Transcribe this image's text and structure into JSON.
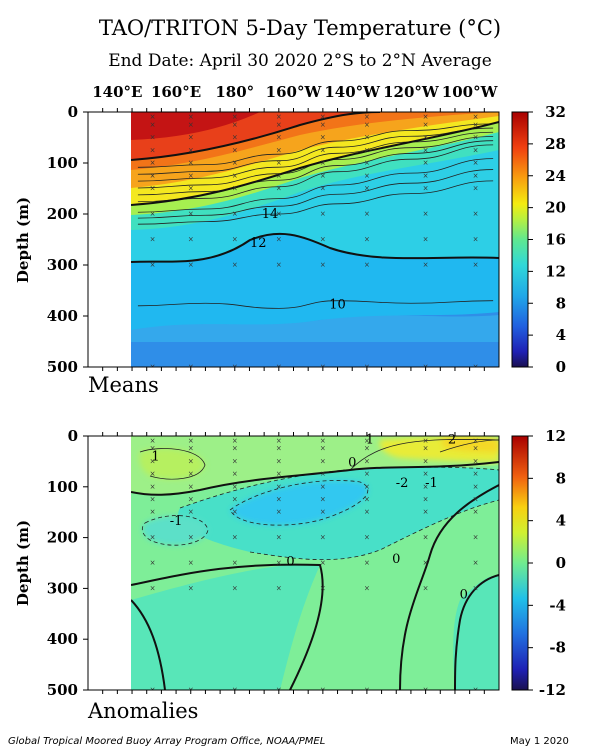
{
  "title": "TAO/TRITON 5-Day Temperature (°C)",
  "subtitle": "End Date: April 30 2020   2°S to 2°N Average",
  "footer_left": "Global Tropical Moored Buoy Array Program Office, NOAA/PMEL",
  "footer_right": "May  1 2020",
  "chart_data": [
    {
      "type": "heatmap",
      "panel_label": "Means",
      "ylabel": "Depth (m)",
      "x_tick_labels": [
        "140°E",
        "160°E",
        "180°",
        "160°W",
        "140°W",
        "120°W",
        "100°W"
      ],
      "x_ticks_lon": [
        140,
        160,
        180,
        200,
        220,
        240,
        260
      ],
      "xlim": [
        130,
        270
      ],
      "data_start_lon": 147,
      "y_ticks": [
        0,
        100,
        200,
        300,
        400,
        500
      ],
      "ylim": [
        500,
        0
      ],
      "colorbar": {
        "min": 0,
        "max": 32,
        "ticks": [
          0,
          4,
          8,
          12,
          16,
          20,
          24,
          28,
          32
        ]
      },
      "contour_labels": [
        {
          "text": "14",
          "lon": 192,
          "depth": 208
        },
        {
          "text": "12",
          "lon": 188,
          "depth": 265
        },
        {
          "text": "10",
          "lon": 215,
          "depth": 385
        }
      ],
      "isotherm_depths": {
        "lon": [
          147,
          170,
          195,
          215,
          240,
          268
        ],
        "t28": [
          95,
          90,
          70,
          45,
          25,
          15
        ],
        "t20": [
          185,
          178,
          155,
          125,
          100,
          70
        ],
        "t14": [
          220,
          215,
          200,
          180,
          160,
          135
        ],
        "t12": [
          295,
          300,
          270,
          240,
          280,
          285
        ],
        "t10": [
          380,
          375,
          385,
          370,
          375,
          370
        ]
      }
    },
    {
      "type": "heatmap",
      "panel_label": "Anomalies",
      "ylabel": "Depth (m)",
      "y_ticks": [
        0,
        100,
        200,
        300,
        400,
        500
      ],
      "ylim": [
        500,
        0
      ],
      "colorbar": {
        "min": -12,
        "max": 12,
        "ticks": [
          12,
          8,
          4,
          0,
          -4,
          -8,
          -12
        ]
      },
      "contour_labels": [
        {
          "text": "1",
          "lon": 153,
          "depth": 48
        },
        {
          "text": "1",
          "lon": 226,
          "depth": 15
        },
        {
          "text": "2",
          "lon": 254,
          "depth": 15
        },
        {
          "text": "0",
          "lon": 220,
          "depth": 60
        },
        {
          "text": "-2",
          "lon": 237,
          "depth": 100
        },
        {
          "text": "-1",
          "lon": 247,
          "depth": 100
        },
        {
          "text": "-1",
          "lon": 160,
          "depth": 175
        },
        {
          "text": "0",
          "lon": 199,
          "depth": 255
        },
        {
          "text": "0",
          "lon": 235,
          "depth": 250
        },
        {
          "text": "0",
          "lon": 258,
          "depth": 320
        }
      ],
      "cool_core": {
        "lon": 218,
        "depth": 125,
        "anomaly": -2.5
      }
    }
  ]
}
